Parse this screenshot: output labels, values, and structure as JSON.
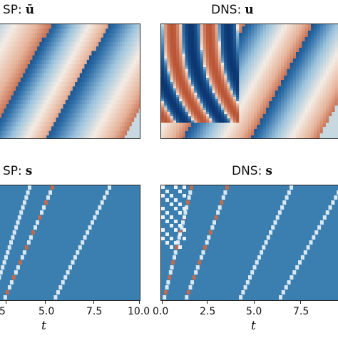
{
  "panels": {
    "sp_u": {
      "label": "SP:",
      "symbol": "ū"
    },
    "dns_u": {
      "label": "DNS:",
      "symbol": "u"
    },
    "sp_s": {
      "label": "SP:",
      "symbol": "s"
    },
    "dns_s": {
      "label": "DNS:",
      "symbol": "s"
    }
  },
  "chart_data": [
    {
      "type": "heatmap",
      "title": "SP: ū",
      "xlim": [
        2.0,
        10.0
      ],
      "description_of_values": "travelling wave bands (diverging blue–red)",
      "colormap": [
        "#08306b",
        "#2f6fa8",
        "#9cc3dd",
        "#f4ece4",
        "#e6b39a",
        "#b54a2a"
      ]
    },
    {
      "type": "heatmap",
      "title": "DNS: u",
      "xlim": [
        0.0,
        10.0
      ],
      "colormap": [
        "#08306b",
        "#2f6fa8",
        "#9cc3dd",
        "#f4ece4",
        "#e6b39a",
        "#b54a2a"
      ]
    },
    {
      "type": "heatmap",
      "title": "SP: s",
      "xlim": [
        2.0,
        10.0
      ],
      "xticks": [
        "5",
        "5.0",
        "7.5",
        "10.0"
      ],
      "xlabel": "t",
      "background": "#3b7fb0"
    },
    {
      "type": "heatmap",
      "title": "DNS: s",
      "xlim": [
        0.0,
        10.0
      ],
      "xticks": [
        "0.0",
        "2.5",
        "5.0",
        "7.5"
      ],
      "xlabel": "t",
      "background": "#3b7fb0"
    }
  ],
  "axes": {
    "left_ticks": [
      "5",
      "5.0",
      "7.5",
      "10.0"
    ],
    "right_ticks": [
      "0.0",
      "2.5",
      "5.0",
      "7.5"
    ],
    "xlabel": "t"
  }
}
